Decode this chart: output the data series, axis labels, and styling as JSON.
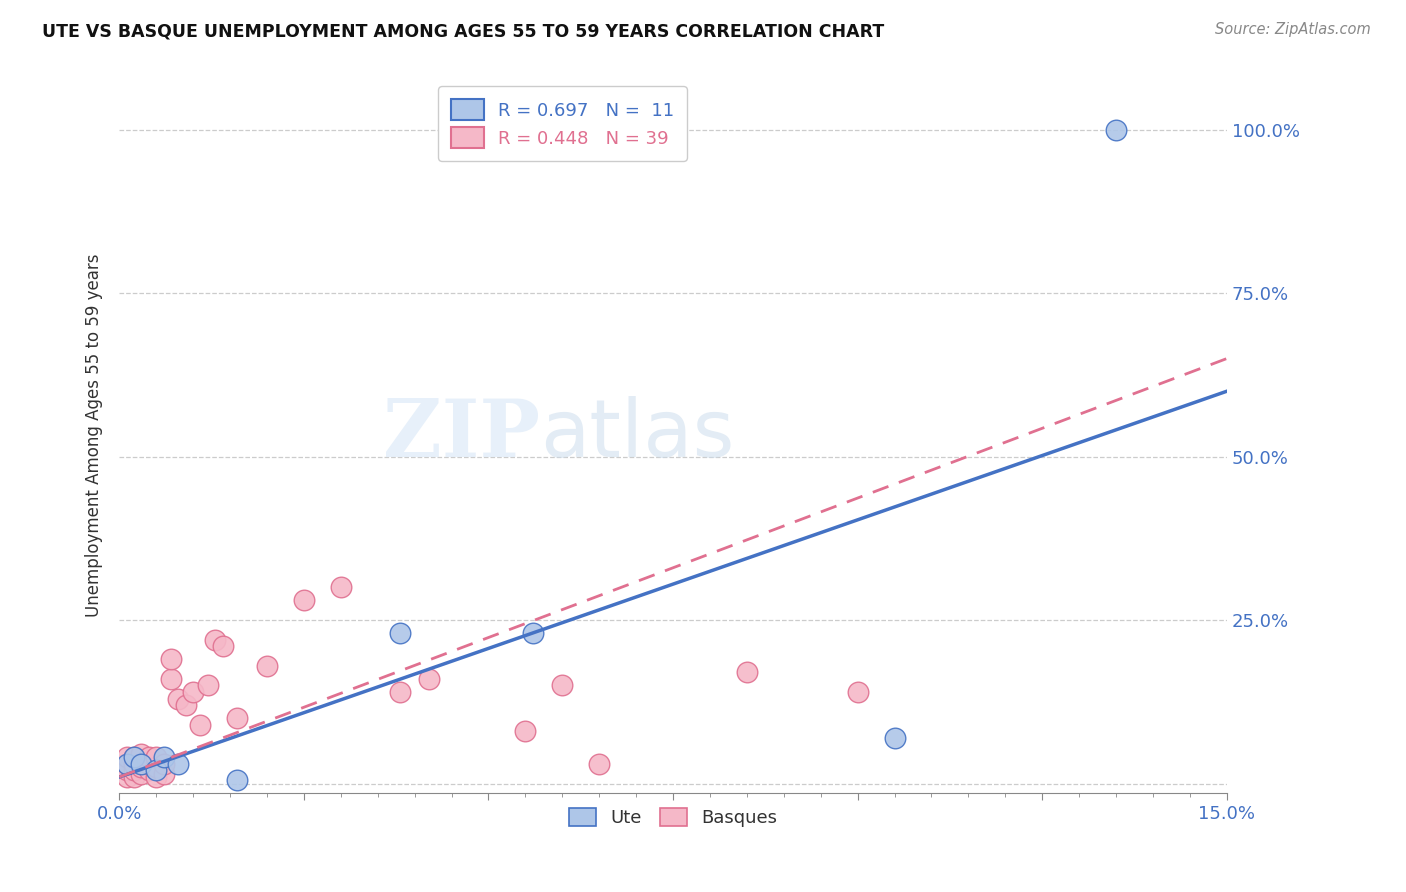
{
  "title": "UTE VS BASQUE UNEMPLOYMENT AMONG AGES 55 TO 59 YEARS CORRELATION CHART",
  "source": "Source: ZipAtlas.com",
  "ylabel": "Unemployment Among Ages 55 to 59 years",
  "xlim": [
    0.0,
    0.15
  ],
  "ylim": [
    -0.015,
    1.08
  ],
  "xticks": [
    0.0,
    0.025,
    0.05,
    0.075,
    0.1,
    0.125,
    0.15
  ],
  "xticklabels": [
    "0.0%",
    "",
    "",
    "",
    "",
    "",
    "15.0%"
  ],
  "ytick_positions": [
    0.0,
    0.25,
    0.5,
    0.75,
    1.0
  ],
  "yticklabels": [
    "",
    "25.0%",
    "50.0%",
    "75.0%",
    "100.0%"
  ],
  "ute_R": 0.697,
  "ute_N": 11,
  "basque_R": 0.448,
  "basque_N": 39,
  "ute_color": "#aec6e8",
  "basque_color": "#f5b8c8",
  "ute_line_color": "#4472c4",
  "basque_line_color": "#e07090",
  "ute_x": [
    0.001,
    0.002,
    0.003,
    0.005,
    0.006,
    0.008,
    0.016,
    0.038,
    0.056,
    0.105,
    0.135
  ],
  "ute_y": [
    0.03,
    0.04,
    0.03,
    0.02,
    0.04,
    0.03,
    0.005,
    0.23,
    0.23,
    0.07,
    1.0
  ],
  "basque_x": [
    0.001,
    0.001,
    0.001,
    0.001,
    0.002,
    0.002,
    0.002,
    0.002,
    0.003,
    0.003,
    0.003,
    0.004,
    0.004,
    0.004,
    0.005,
    0.005,
    0.005,
    0.006,
    0.006,
    0.007,
    0.007,
    0.008,
    0.009,
    0.01,
    0.011,
    0.012,
    0.013,
    0.014,
    0.016,
    0.02,
    0.025,
    0.03,
    0.038,
    0.042,
    0.055,
    0.06,
    0.065,
    0.085,
    0.1
  ],
  "basque_y": [
    0.01,
    0.02,
    0.03,
    0.04,
    0.01,
    0.02,
    0.03,
    0.04,
    0.015,
    0.025,
    0.045,
    0.02,
    0.03,
    0.04,
    0.01,
    0.025,
    0.04,
    0.015,
    0.03,
    0.16,
    0.19,
    0.13,
    0.12,
    0.14,
    0.09,
    0.15,
    0.22,
    0.21,
    0.1,
    0.18,
    0.28,
    0.3,
    0.14,
    0.16,
    0.08,
    0.15,
    0.03,
    0.17,
    0.14
  ],
  "ute_line_x0": 0.0,
  "ute_line_x1": 0.15,
  "ute_line_y0": 0.01,
  "ute_line_y1": 0.6,
  "basque_line_x0": 0.0,
  "basque_line_x1": 0.15,
  "basque_line_y0": 0.01,
  "basque_line_y1": 0.65
}
